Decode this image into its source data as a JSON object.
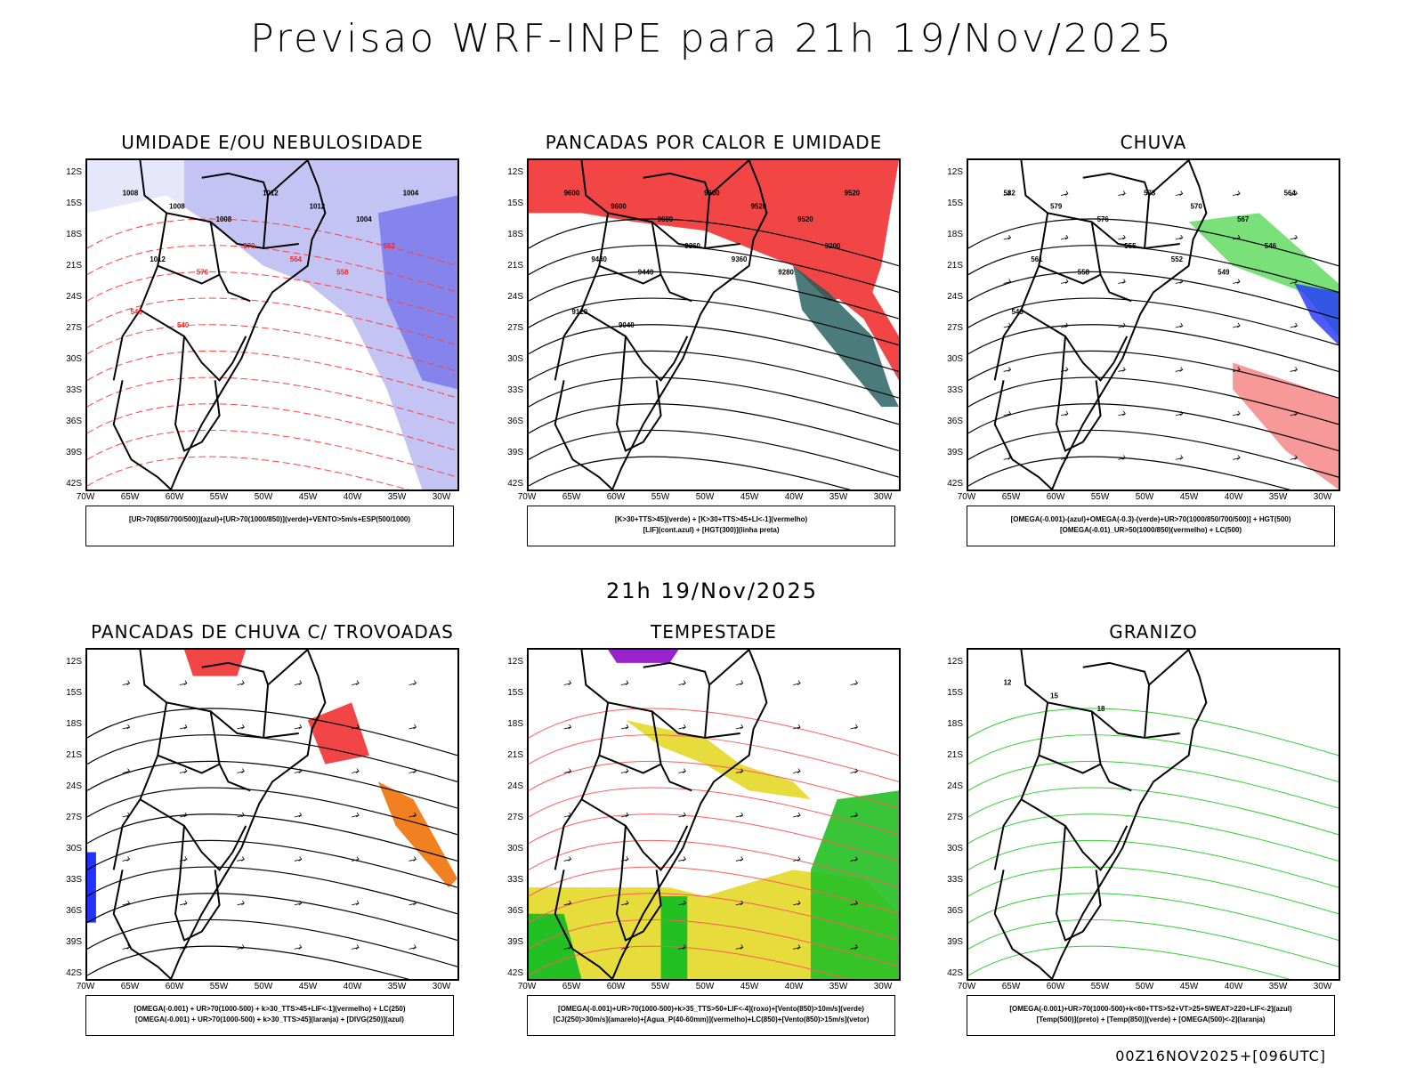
{
  "header": {
    "title": "Previsao WRF-INPE  para 21h 19/Nov/2025",
    "subtitle": "21h 19/Nov/2025",
    "footer": "00Z16NOV2025+[096UTC]"
  },
  "axes": {
    "lat_labels": [
      "12S",
      "15S",
      "18S",
      "21S",
      "24S",
      "27S",
      "30S",
      "33S",
      "36S",
      "39S",
      "42S"
    ],
    "lon_labels": [
      "70W",
      "65W",
      "60W",
      "55W",
      "50W",
      "45W",
      "40W",
      "35W",
      "30W"
    ]
  },
  "panels": [
    {
      "id": "umidade",
      "title": "UMIDADE E/OU NEBULOSIDADE",
      "legend": [
        "[UR>70(850/700/500)](azul)+[UR>70(1000/850)](verde)+VENTO>5m/s+ESP(500/1000)"
      ],
      "colors": {
        "fill": "#b0b0f0",
        "fill2": "#6a6ae8",
        "contour": "#ff4040",
        "green": "#22cc22"
      }
    },
    {
      "id": "pancadas_calor",
      "title": "PANCADAS POR CALOR E UMIDADE",
      "legend": [
        "[K>30+TTS>45](verde) + [K>30+TTS>45+LI<-1](vermelho)",
        "[LIF](cont.azul) + [HGT(300)](linha preta)"
      ],
      "colors": {
        "fill": "#f24646",
        "fill2": "#1f5a5a",
        "contour": "#2222ee"
      }
    },
    {
      "id": "chuva",
      "title": "CHUVA",
      "legend": [
        "[OMEGA(-0.001)-(azul)+OMEGA(-0.3)-(verde)+UR>70(1000/850/700/500)] + HGT(500)",
        "[OMEGA(-0.01)_UR>50(1000/850)(vermelho) + LC(500)"
      ],
      "colors": {
        "fill": "#f24646",
        "fill2": "#2233ff",
        "green": "#22cc22"
      }
    },
    {
      "id": "pancadas_trovoadas",
      "title": "PANCADAS DE CHUVA C/ TROVOADAS",
      "legend": [
        "[OMEGA(-0.001) + UR>70(1000-500) + k>30_TTS>45+LIF<-1](vermelho) + LC(250)",
        "[OMEGA(-0.001) + UR>70(1000-500) + k>30_TTS>45](laranja) + [DIVG(250)](azul)"
      ],
      "colors": {
        "fill": "#f24646",
        "fill2": "#f08020",
        "blue": "#2233ff"
      }
    },
    {
      "id": "tempestade",
      "title": "TEMPESTADE",
      "legend": [
        "[OMEGA(-0.001)+UR>70(1000-500)+k>35_TTS>50+LIF<-4](roxo)+[Vento(850)>10m/s](verde)",
        "[CJ(250)>30m/s](amarelo)+[Agua_P(40-60mm)](vermelho)+LC(850)+[Vento(850)>15m/s](vetor)"
      ],
      "colors": {
        "yellow": "#e6dc3c",
        "green": "#22c022",
        "red": "#ff5a5a",
        "purple": "#9922cc"
      }
    },
    {
      "id": "granizo",
      "title": "GRANIZO",
      "legend": [
        "[OMEGA(-0.001)+UR>70(1000-500)+k<60+TTS>52+VT>25+SWEAT>220+LIF<-2](azul)",
        "[Temp(500)](preto) + [Temp(850)](verde) + [OMEGA(500)<-2](laranja)"
      ],
      "colors": {
        "green": "#33cc33",
        "orange": "#e07020",
        "blue": "#2233ff"
      }
    }
  ],
  "annotations": {
    "umidade": [
      "1008",
      "1008",
      "1008",
      "1012",
      "1012",
      "1004",
      "1004",
      "1012",
      "576",
      "570",
      "564",
      "558",
      "552",
      "546",
      "540"
    ],
    "pancadas_calor": [
      "9600",
      "9600",
      "9600",
      "9600",
      "9520",
      "9520",
      "9520",
      "9440",
      "9440",
      "9360",
      "9360",
      "9280",
      "9200",
      "9120",
      "9040"
    ],
    "chuva": [
      "582",
      "579",
      "576",
      "573",
      "570",
      "567",
      "564",
      "561",
      "558",
      "555",
      "552",
      "549",
      "546",
      "543"
    ],
    "granizo": [
      "12",
      "15",
      "18"
    ]
  }
}
